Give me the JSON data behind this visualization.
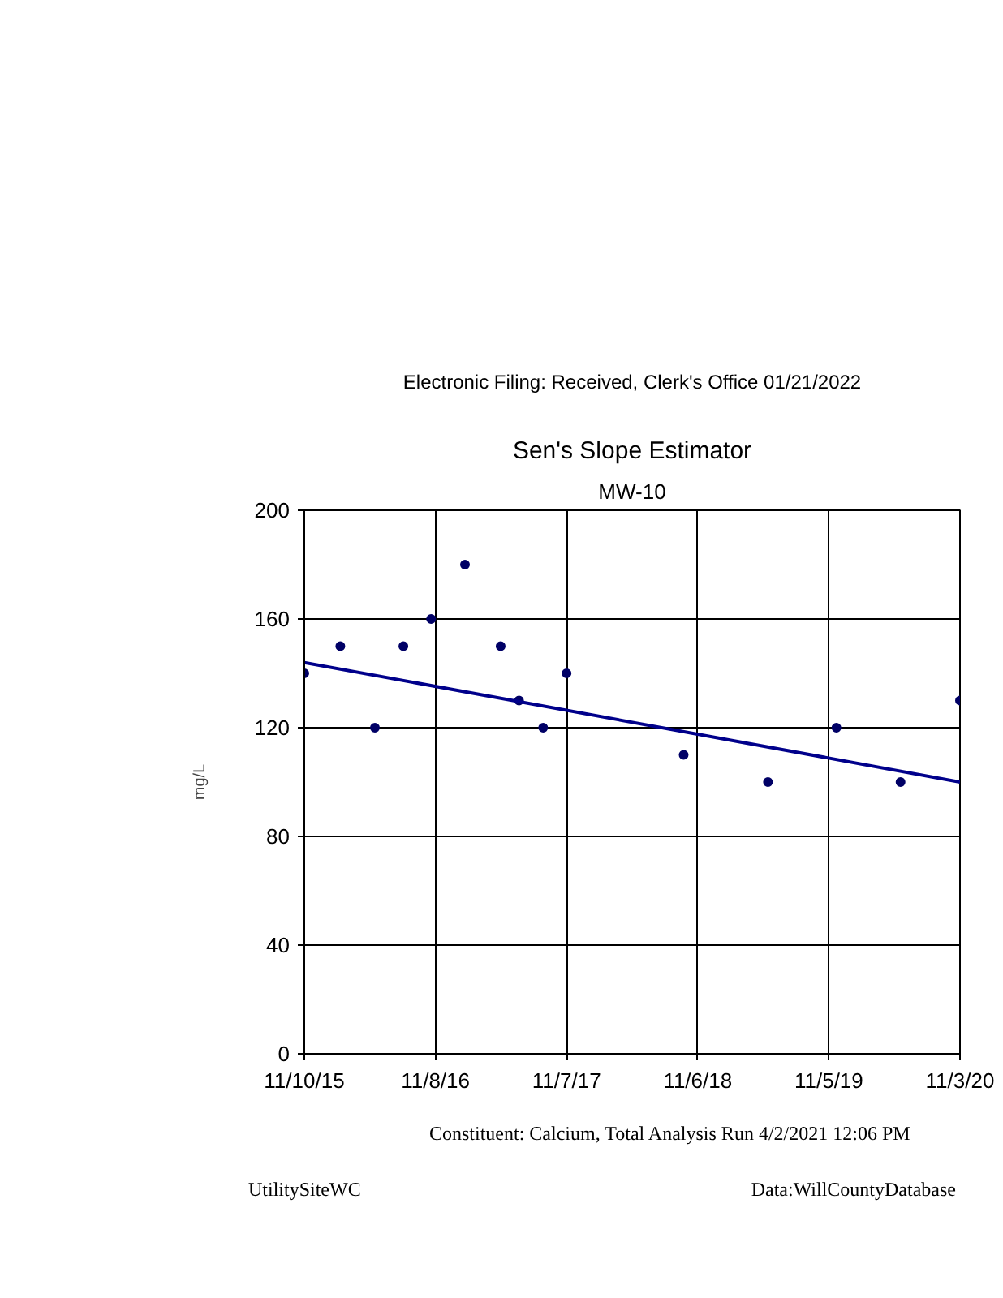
{
  "chart_data": {
    "type": "scatter",
    "title": "Sen's Slope Estimator",
    "subtitle": "MW-10",
    "ylabel": "mg/L",
    "annotations": [
      "Electronic Filing: Received, Clerk's Office 01/21/2022",
      "Constituent: Calcium, Total Analysis Run 4/2/2021 12:06 PM",
      "UtilitySiteWC",
      "Data:WillCountyDatabase"
    ],
    "series": [
      {
        "marker": "circle",
        "color": "#000066",
        "x": [
          "2015-11-10",
          "2016-02-18",
          "2016-05-24",
          "2016-08-11",
          "2016-10-27",
          "2017-01-29",
          "2017-05-08",
          "2017-06-28",
          "2017-09-03",
          "2017-11-07",
          "2018-09-28",
          "2019-05-20",
          "2019-11-26",
          "2020-05-22",
          "2020-11-03"
        ],
        "values": [
          140,
          150,
          120,
          150,
          160,
          180,
          150,
          130,
          120,
          140,
          110,
          100,
          120,
          100,
          130
        ]
      },
      {
        "type": "line",
        "marker": "none",
        "color": "#00008b",
        "x": [
          "2015-11-10",
          "2020-11-03"
        ],
        "values": [
          144,
          100
        ]
      }
    ],
    "xlim": [
      "2015-11-10",
      "2020-11-03"
    ],
    "xticks": [
      {
        "value": "2015-11-10",
        "label": "11/10/15"
      },
      {
        "value": "2016-11-08",
        "label": "11/8/16"
      },
      {
        "value": "2017-11-07",
        "label": "11/7/17"
      },
      {
        "value": "2018-11-06",
        "label": "11/6/18"
      },
      {
        "value": "2019-11-05",
        "label": "11/5/19"
      },
      {
        "value": "2020-11-03",
        "label": "11/3/20"
      }
    ],
    "ylim": [
      0,
      200
    ],
    "yticks": [
      0,
      40,
      80,
      120,
      160,
      200
    ],
    "grid": true,
    "line_style": "solid"
  }
}
